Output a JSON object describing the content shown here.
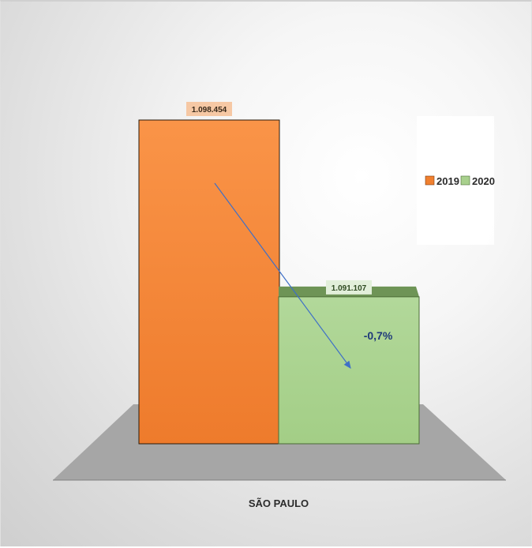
{
  "chart_data": {
    "type": "bar",
    "categories": [
      "SÃO PAULO"
    ],
    "series": [
      {
        "name": "2019",
        "values": [
          1098454
        ],
        "color": "#F0802F"
      },
      {
        "name": "2020",
        "values": [
          1091107
        ],
        "color": "#A8D08D"
      }
    ],
    "data_labels": [
      "1.098.454",
      "1.091.107"
    ],
    "annotation": "-0,7%",
    "xlabel": "SÃO PAULO",
    "legend": {
      "position": "right",
      "items": [
        "2019",
        "2020"
      ]
    },
    "grid": false,
    "colors": {
      "orange": "#F0802F",
      "green": "#A8D08D",
      "arrow": "#3E6FC7",
      "annotation_text": "#1F3A7A",
      "floor": "#A6A6A6"
    }
  }
}
